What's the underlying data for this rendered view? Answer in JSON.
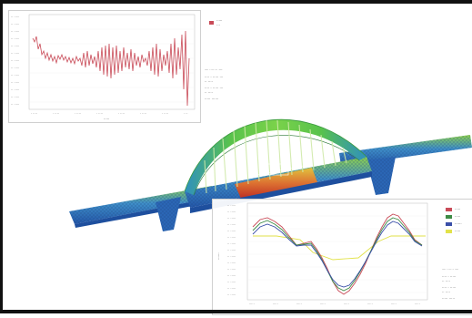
{
  "colors": {
    "series_red": "#c94b58",
    "series_green": "#3e8b45",
    "series_blue": "#3a4fa8",
    "series_yellow": "#e2e24a",
    "bridge_deck_blue": "#2f62b7",
    "bridge_arch_green": "#5fc64a",
    "bridge_peak_red": "#d6301e"
  },
  "icons": {
    "bridge_model": "3d-bridge-model-icon"
  }
}
